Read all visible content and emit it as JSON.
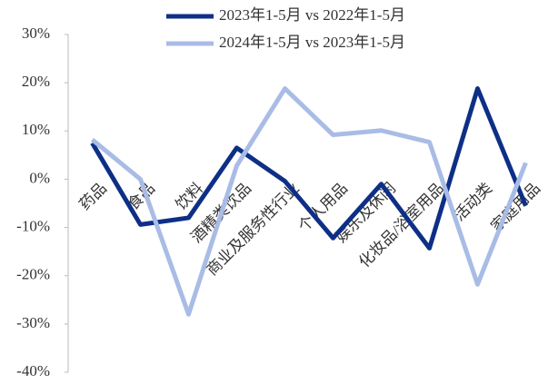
{
  "chart_data": {
    "type": "line",
    "categories": [
      "药品",
      "食品",
      "饮料",
      "酒精类饮品",
      "商业及服务性行业",
      "个人用品",
      "娱乐及休闲",
      "化妆品/浴室用品",
      "活动类",
      "家庭用品"
    ],
    "series": [
      {
        "name": "2023年1-5月 vs 2022年1-5月",
        "color": "#0e2f86",
        "values": [
          7.5,
          -9.4,
          -8,
          6.5,
          -0.4,
          -12.2,
          -1,
          -14.3,
          18.8,
          -5.5
        ]
      },
      {
        "name": "2024年1-5月 vs 2023年1-5月",
        "color": "#a9bce6",
        "values": [
          8.2,
          0,
          -28,
          2.8,
          18.8,
          9.2,
          10.1,
          7.7,
          -21.8,
          3.4
        ]
      }
    ],
    "ylim": [
      -40,
      30
    ],
    "yticks": [
      {
        "value": -40,
        "label": "-40%"
      },
      {
        "value": -30,
        "label": "-30%"
      },
      {
        "value": -20,
        "label": "-20%"
      },
      {
        "value": -10,
        "label": "-10%"
      },
      {
        "value": 0,
        "label": "0%"
      },
      {
        "value": 10,
        "label": "10%"
      },
      {
        "value": 20,
        "label": "20%"
      },
      {
        "value": 30,
        "label": "30%"
      }
    ],
    "grid": false
  }
}
